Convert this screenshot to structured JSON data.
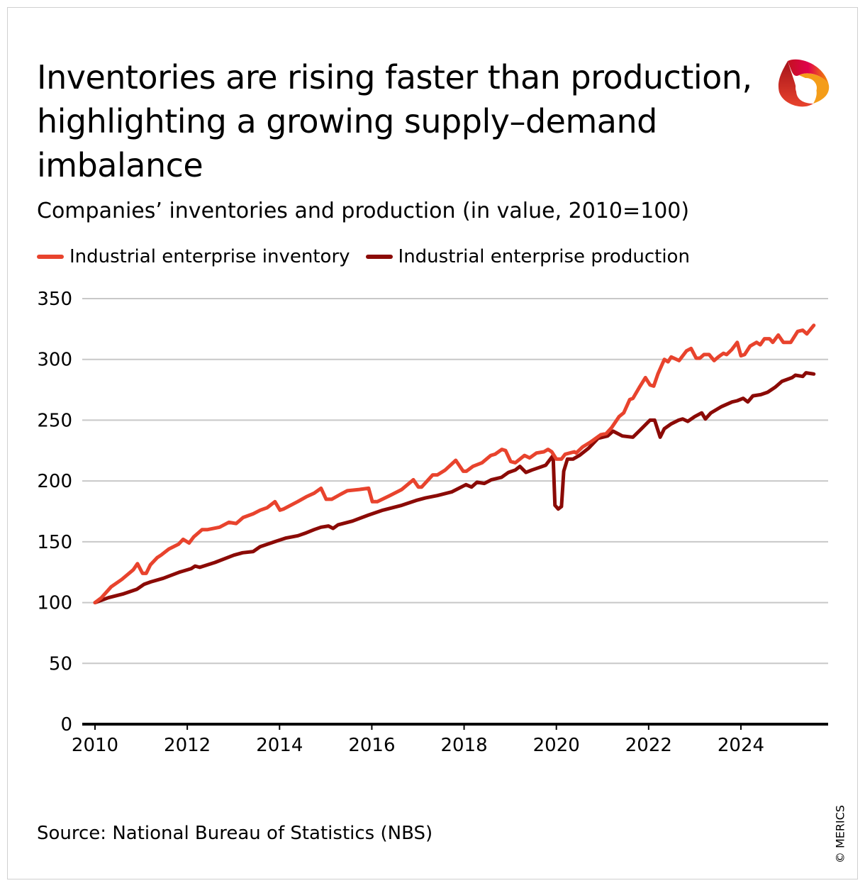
{
  "title_lines": [
    "Inventories are rising faster than production,",
    "highlighting a growing supply–demand",
    "imbalance"
  ],
  "subtitle": "Companies’ inventories and production (in value, 2010=100)",
  "source": "Source: National Bureau of Statistics (NBS)",
  "copyright": "© MERICS",
  "logo_text": "MERICS",
  "chart_data": {
    "type": "line",
    "title": "Inventories are rising faster than production, highlighting a growing supply–demand imbalance",
    "subtitle": "Companies’ inventories and production (in value, 2010=100)",
    "xlabel": "",
    "ylabel": "",
    "xlim": [
      2010,
      2026
    ],
    "ylim": [
      0,
      350
    ],
    "x_ticks": [
      "2010",
      "2012",
      "2014",
      "2016",
      "2018",
      "2020",
      "2022",
      "2024"
    ],
    "y_ticks": [
      "0",
      "50",
      "100",
      "150",
      "200",
      "250",
      "300",
      "350"
    ],
    "grid": "horizontal",
    "legend_position": "top-left",
    "series": [
      {
        "name": "Industrial enterprise inventory",
        "color": "#e8432d",
        "points": [
          [
            2010.0,
            100
          ],
          [
            2010.14,
            104
          ],
          [
            2010.35,
            113
          ],
          [
            2010.58,
            119
          ],
          [
            2010.83,
            127
          ],
          [
            2010.92,
            132
          ],
          [
            2011.03,
            124
          ],
          [
            2011.11,
            124
          ],
          [
            2011.2,
            131
          ],
          [
            2011.35,
            137
          ],
          [
            2011.43,
            139
          ],
          [
            2011.6,
            144
          ],
          [
            2011.81,
            148
          ],
          [
            2011.91,
            152
          ],
          [
            2012.04,
            149
          ],
          [
            2012.14,
            154
          ],
          [
            2012.32,
            160
          ],
          [
            2012.44,
            160
          ],
          [
            2012.7,
            162
          ],
          [
            2012.9,
            166
          ],
          [
            2013.06,
            165
          ],
          [
            2013.21,
            170
          ],
          [
            2013.43,
            173
          ],
          [
            2013.58,
            176
          ],
          [
            2013.73,
            178
          ],
          [
            2013.9,
            183
          ],
          [
            2014.01,
            176
          ],
          [
            2014.09,
            177
          ],
          [
            2014.24,
            180
          ],
          [
            2014.39,
            183
          ],
          [
            2014.58,
            187
          ],
          [
            2014.75,
            190
          ],
          [
            2014.9,
            194
          ],
          [
            2015.01,
            185
          ],
          [
            2015.13,
            185
          ],
          [
            2015.32,
            189
          ],
          [
            2015.47,
            192
          ],
          [
            2015.73,
            193
          ],
          [
            2015.93,
            194
          ],
          [
            2016.01,
            183
          ],
          [
            2016.12,
            183
          ],
          [
            2016.39,
            188
          ],
          [
            2016.65,
            193
          ],
          [
            2016.9,
            201
          ],
          [
            2017.01,
            195
          ],
          [
            2017.08,
            195
          ],
          [
            2017.32,
            205
          ],
          [
            2017.42,
            205
          ],
          [
            2017.59,
            209
          ],
          [
            2017.82,
            217
          ],
          [
            2017.98,
            208
          ],
          [
            2018.05,
            208
          ],
          [
            2018.19,
            212
          ],
          [
            2018.39,
            215
          ],
          [
            2018.58,
            221
          ],
          [
            2018.67,
            222
          ],
          [
            2018.82,
            226
          ],
          [
            2018.9,
            225
          ],
          [
            2019.01,
            216
          ],
          [
            2019.11,
            215
          ],
          [
            2019.31,
            221
          ],
          [
            2019.42,
            219
          ],
          [
            2019.57,
            223
          ],
          [
            2019.73,
            224
          ],
          [
            2019.82,
            226
          ],
          [
            2019.9,
            224
          ],
          [
            2020.0,
            218
          ],
          [
            2020.11,
            218
          ],
          [
            2020.19,
            222
          ],
          [
            2020.39,
            224
          ],
          [
            2020.43,
            223
          ],
          [
            2020.57,
            228
          ],
          [
            2020.74,
            232
          ],
          [
            2020.96,
            238
          ],
          [
            2021.08,
            239
          ],
          [
            2021.2,
            244
          ],
          [
            2021.36,
            253
          ],
          [
            2021.46,
            256
          ],
          [
            2021.59,
            267
          ],
          [
            2021.66,
            268
          ],
          [
            2021.8,
            277
          ],
          [
            2021.93,
            285
          ],
          [
            2022.03,
            279
          ],
          [
            2022.11,
            278
          ],
          [
            2022.2,
            288
          ],
          [
            2022.34,
            300
          ],
          [
            2022.42,
            298
          ],
          [
            2022.49,
            302
          ],
          [
            2022.66,
            299
          ],
          [
            2022.82,
            307
          ],
          [
            2022.92,
            309
          ],
          [
            2023.03,
            301
          ],
          [
            2023.11,
            301
          ],
          [
            2023.2,
            304
          ],
          [
            2023.31,
            304
          ],
          [
            2023.42,
            299
          ],
          [
            2023.51,
            302
          ],
          [
            2023.62,
            305
          ],
          [
            2023.69,
            304
          ],
          [
            2023.8,
            308
          ],
          [
            2023.92,
            314
          ],
          [
            2024.0,
            303
          ],
          [
            2024.08,
            304
          ],
          [
            2024.2,
            311
          ],
          [
            2024.34,
            314
          ],
          [
            2024.42,
            312
          ],
          [
            2024.51,
            317
          ],
          [
            2024.62,
            317
          ],
          [
            2024.69,
            314
          ],
          [
            2024.81,
            320
          ],
          [
            2024.92,
            314
          ],
          [
            2025.08,
            314
          ],
          [
            2025.23,
            323
          ],
          [
            2025.34,
            324
          ],
          [
            2025.43,
            321
          ],
          [
            2025.58,
            328
          ]
        ]
      },
      {
        "name": "Industrial enterprise production",
        "color": "#8b0a06",
        "points": [
          [
            2010.0,
            100
          ],
          [
            2010.29,
            104
          ],
          [
            2010.6,
            107
          ],
          [
            2010.91,
            111
          ],
          [
            2011.06,
            115
          ],
          [
            2011.21,
            117
          ],
          [
            2011.48,
            120
          ],
          [
            2011.83,
            125
          ],
          [
            2012.09,
            128
          ],
          [
            2012.17,
            130
          ],
          [
            2012.27,
            129
          ],
          [
            2012.6,
            133
          ],
          [
            2013.01,
            139
          ],
          [
            2013.2,
            141
          ],
          [
            2013.43,
            142
          ],
          [
            2013.58,
            146
          ],
          [
            2013.89,
            150
          ],
          [
            2014.13,
            153
          ],
          [
            2014.4,
            155
          ],
          [
            2014.55,
            157
          ],
          [
            2014.75,
            160
          ],
          [
            2014.9,
            162
          ],
          [
            2015.06,
            163
          ],
          [
            2015.16,
            161
          ],
          [
            2015.27,
            164
          ],
          [
            2015.58,
            167
          ],
          [
            2015.93,
            172
          ],
          [
            2016.24,
            176
          ],
          [
            2016.65,
            180
          ],
          [
            2016.96,
            184
          ],
          [
            2017.16,
            186
          ],
          [
            2017.42,
            188
          ],
          [
            2017.73,
            191
          ],
          [
            2018.04,
            197
          ],
          [
            2018.16,
            195
          ],
          [
            2018.28,
            199
          ],
          [
            2018.44,
            198
          ],
          [
            2018.59,
            201
          ],
          [
            2018.81,
            203
          ],
          [
            2018.96,
            207
          ],
          [
            2019.11,
            209
          ],
          [
            2019.21,
            212
          ],
          [
            2019.34,
            207
          ],
          [
            2019.47,
            209
          ],
          [
            2019.62,
            211
          ],
          [
            2019.77,
            213
          ],
          [
            2019.93,
            221
          ],
          [
            2019.97,
            180
          ],
          [
            2020.04,
            177
          ],
          [
            2020.11,
            179
          ],
          [
            2020.16,
            208
          ],
          [
            2020.24,
            218
          ],
          [
            2020.36,
            218
          ],
          [
            2020.5,
            221
          ],
          [
            2020.7,
            227
          ],
          [
            2020.9,
            235
          ],
          [
            2021.11,
            237
          ],
          [
            2021.23,
            241
          ],
          [
            2021.43,
            237
          ],
          [
            2021.66,
            236
          ],
          [
            2021.82,
            242
          ],
          [
            2022.03,
            250
          ],
          [
            2022.13,
            250
          ],
          [
            2022.25,
            236
          ],
          [
            2022.34,
            243
          ],
          [
            2022.49,
            247
          ],
          [
            2022.65,
            250
          ],
          [
            2022.74,
            251
          ],
          [
            2022.85,
            249
          ],
          [
            2023.0,
            253
          ],
          [
            2023.15,
            256
          ],
          [
            2023.23,
            251
          ],
          [
            2023.35,
            256
          ],
          [
            2023.57,
            261
          ],
          [
            2023.81,
            265
          ],
          [
            2023.92,
            266
          ],
          [
            2024.05,
            268
          ],
          [
            2024.15,
            265
          ],
          [
            2024.26,
            270
          ],
          [
            2024.43,
            271
          ],
          [
            2024.58,
            273
          ],
          [
            2024.74,
            277
          ],
          [
            2024.89,
            282
          ],
          [
            2025.11,
            285
          ],
          [
            2025.18,
            287
          ],
          [
            2025.34,
            286
          ],
          [
            2025.41,
            289
          ],
          [
            2025.58,
            288
          ]
        ]
      }
    ]
  }
}
